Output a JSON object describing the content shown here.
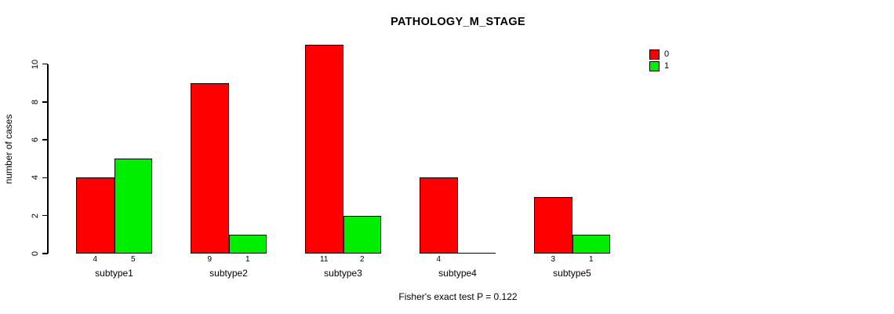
{
  "title": "PATHOLOGY_M_STAGE",
  "legend": [
    {
      "label": "0",
      "color": "#ff0000"
    },
    {
      "label": "1",
      "color": "#00ee00"
    }
  ],
  "chart_data": {
    "type": "bar",
    "title": "PATHOLOGY_M_STAGE",
    "xlabel": "",
    "ylabel": "number of cases",
    "categories": [
      "subtype1",
      "subtype2",
      "subtype3",
      "subtype4",
      "subtype5"
    ],
    "series": [
      {
        "name": "0",
        "color": "#ff0000",
        "values": [
          4,
          9,
          11,
          4,
          3
        ]
      },
      {
        "name": "1",
        "color": "#00ee00",
        "values": [
          5,
          1,
          2,
          0,
          1
        ]
      }
    ],
    "bar_labels": [
      [
        "4",
        "5"
      ],
      [
        "9",
        "1"
      ],
      [
        "11",
        "2"
      ],
      [
        "4",
        ""
      ],
      [
        "3",
        "1"
      ]
    ],
    "yticks": [
      0,
      2,
      4,
      6,
      8,
      10
    ],
    "ylim": [
      0,
      11
    ],
    "grid": false,
    "legend_position": "top-right",
    "annotation": "Fisher's exact test P = 0.122"
  }
}
